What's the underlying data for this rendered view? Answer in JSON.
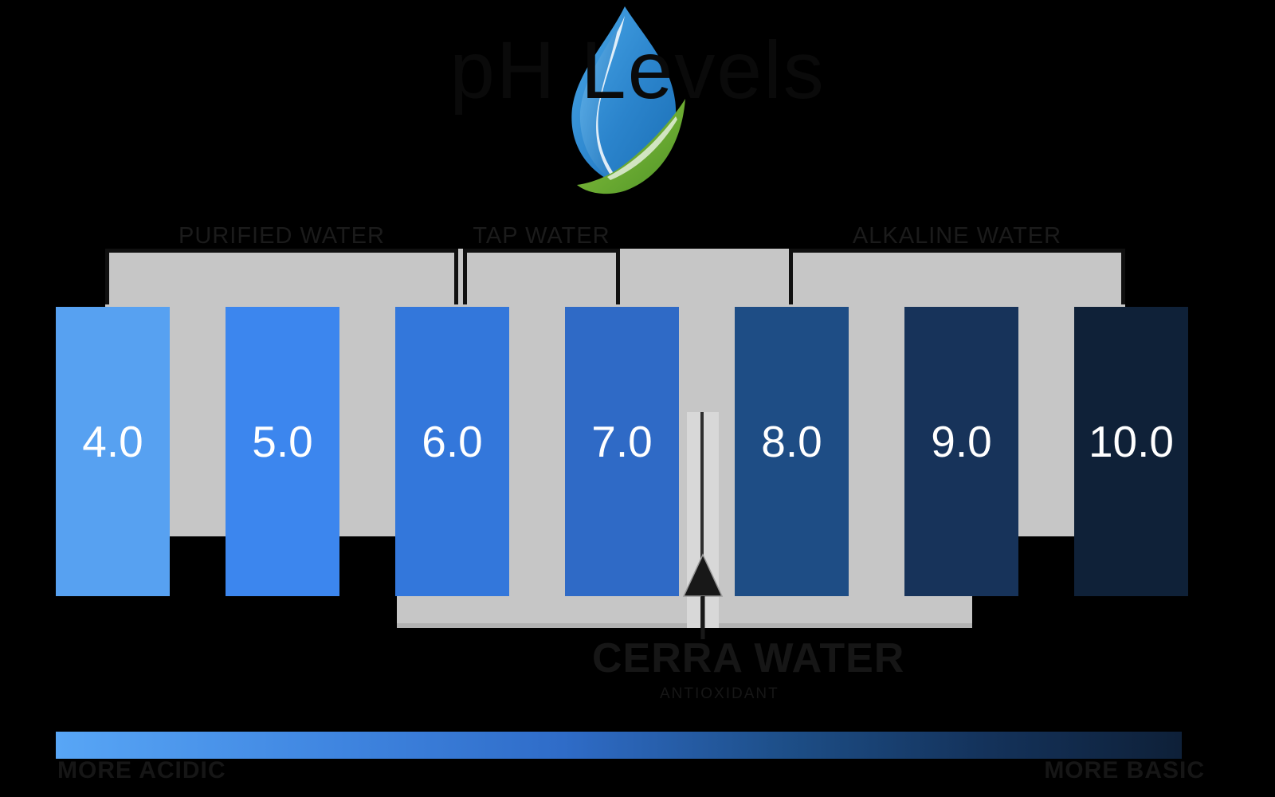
{
  "title": "pH Levels",
  "logo": {
    "description": "water-drop-with-green-leaf logo",
    "drop_blue_dark": "#1b6fb5",
    "drop_blue_light": "#4aa8e8",
    "leaf_green_dark": "#4e9427",
    "leaf_green_light": "#8fc63f"
  },
  "brackets": [
    {
      "label": "PURIFIED WATER",
      "ph_range": "4.0 - 6.0"
    },
    {
      "label": "TAP WATER",
      "ph_range": "6.0 - 7.0"
    },
    {
      "label": "ALKALINE WATER",
      "ph_range": "8.0 - 10.0"
    }
  ],
  "bars": [
    {
      "value": "4.0",
      "color": "#57a1f1"
    },
    {
      "value": "5.0",
      "color": "#3c86ee"
    },
    {
      "value": "6.0",
      "color": "#3377db"
    },
    {
      "value": "7.0",
      "color": "#2f6ac6"
    },
    {
      "value": "8.0",
      "color": "#1e4d85"
    },
    {
      "value": "9.0",
      "color": "#17335a"
    },
    {
      "value": "10.0",
      "color": "#0f2138"
    }
  ],
  "callout": {
    "line1": "CERRA WATER",
    "line2": "ANTIOXIDANT",
    "arrow_points_between": "7.0 and 8.0"
  },
  "gradient_scale": {
    "left_label": "MORE ACIDIC",
    "right_label": "MORE BASIC",
    "start_color": "#58a6f6",
    "end_color": "#0e2038"
  },
  "chart_data": {
    "type": "bar",
    "title": "pH Levels",
    "categories": [
      "4.0",
      "5.0",
      "6.0",
      "7.0",
      "8.0",
      "9.0",
      "10.0"
    ],
    "values": [
      1,
      1,
      1,
      1,
      1,
      1,
      1
    ],
    "note": "equal-height scale bars labeled with pH values; color encodes acidity (light blue acidic to dark navy basic)",
    "groups": [
      {
        "label": "PURIFIED WATER",
        "covers": [
          "4.0",
          "5.0",
          "6.0"
        ]
      },
      {
        "label": "TAP WATER",
        "covers": [
          "6.0",
          "7.0"
        ]
      },
      {
        "label": "ALKALINE WATER",
        "covers": [
          "8.0",
          "9.0",
          "10.0"
        ]
      }
    ],
    "legend_position": "none",
    "grid": false
  }
}
